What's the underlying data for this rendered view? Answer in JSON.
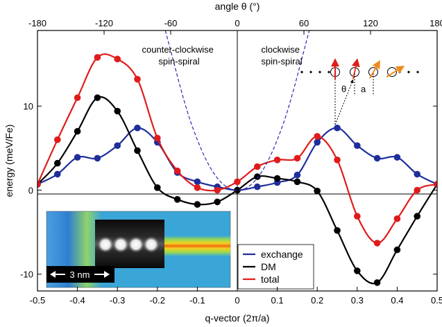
{
  "chart_data": {
    "type": "line",
    "xlabel": "q-vector (2π/a)",
    "ylabel": "energy (meV/Fe)",
    "x2label": "angle θ (°)",
    "xlim": [
      -0.5,
      0.5
    ],
    "ylim": [
      -12,
      19
    ],
    "x_ticks": [
      -0.5,
      -0.4,
      -0.3,
      -0.2,
      -0.1,
      0,
      0.1,
      0.2,
      0.3,
      0.4,
      0.5
    ],
    "x_tick_labels": [
      "-0.5",
      "-0.4",
      "-0.3",
      "-0.2",
      "-0.1",
      "0",
      "0.1",
      "0.2",
      "0.3",
      "0.4",
      "0.5"
    ],
    "y_ticks": [
      -10,
      0,
      10
    ],
    "y_tick_labels": [
      "-10",
      "0",
      "10"
    ],
    "x2_ticks": [
      -0.5,
      -0.3333,
      -0.1667,
      0,
      0.1667,
      0.3333,
      0.5
    ],
    "x2_tick_labels": [
      "-180",
      "-120",
      "-60",
      "0",
      "60",
      "120",
      "180"
    ],
    "annotations": [
      {
        "lines": [
          "counter-clockwise",
          "spin-spiral"
        ],
        "x": -0.245,
        "y": 17
      },
      {
        "lines": [
          "clockwise",
          "spin-spiral"
        ],
        "x": 0.125,
        "y": 17
      }
    ],
    "diagram_labels": {
      "theta": "θ",
      "a": "a"
    },
    "scale_bar": "3 nm",
    "legend_position": "bottom-right",
    "series": [
      {
        "name": "exchange",
        "color": "#1e2e9a",
        "x": [
          -0.5,
          -0.45,
          -0.4,
          -0.35,
          -0.3,
          -0.25,
          -0.2,
          -0.15,
          -0.1,
          -0.05,
          0,
          0.05,
          0.1,
          0.15,
          0.2,
          0.25,
          0.3,
          0.35,
          0.4,
          0.45,
          0.5
        ],
        "y": [
          0.7,
          1.9,
          3.9,
          3.8,
          5.3,
          7.4,
          5.7,
          2.1,
          1.0,
          0.4,
          0,
          0.4,
          0.9,
          1.8,
          5.7,
          7.4,
          5.3,
          3.8,
          3.9,
          1.9,
          0.7
        ]
      },
      {
        "name": "DM",
        "color": "#000000",
        "x": [
          -0.5,
          -0.45,
          -0.4,
          -0.35,
          -0.3,
          -0.25,
          -0.2,
          -0.15,
          -0.1,
          -0.05,
          0,
          0.05,
          0.1,
          0.15,
          0.2,
          0.25,
          0.3,
          0.35,
          0.4,
          0.45,
          0.5
        ],
        "y": [
          0.7,
          3.2,
          7.0,
          11.0,
          9.4,
          4.7,
          0.3,
          -1.1,
          -1.7,
          -1.4,
          0,
          1.6,
          1.4,
          1.0,
          -0.1,
          -4.8,
          -9.6,
          -11.0,
          -7.1,
          -3.1,
          0.7
        ]
      },
      {
        "name": "total",
        "color": "#e01b1b",
        "x": [
          -0.5,
          -0.45,
          -0.4,
          -0.35,
          -0.3,
          -0.25,
          -0.2,
          -0.15,
          -0.1,
          -0.05,
          0,
          0.05,
          0.1,
          0.15,
          0.2,
          0.25,
          0.3,
          0.35,
          0.4,
          0.45,
          0.5
        ],
        "y": [
          0.7,
          6.0,
          11.0,
          15.8,
          15.6,
          13.2,
          6.2,
          2.3,
          0.3,
          0.0,
          1.0,
          2.8,
          3.6,
          3.8,
          6.4,
          3.6,
          -3.1,
          -6.3,
          -3.4,
          0.0,
          0.7
        ]
      },
      {
        "name": "",
        "color": "#2a2ab0",
        "style": "dashed",
        "x": [
          -0.18,
          -0.16,
          -0.14,
          -0.12,
          -0.1,
          -0.08,
          -0.06,
          -0.04,
          -0.02,
          0,
          0.02,
          0.04,
          0.06,
          0.08,
          0.1,
          0.12,
          0.14,
          0.16,
          0.18
        ],
        "y": [
          19.0,
          15.4,
          11.8,
          8.6,
          6.0,
          3.8,
          2.1,
          0.9,
          0.2,
          0,
          0.2,
          0.9,
          2.1,
          3.8,
          6.0,
          8.6,
          11.8,
          15.4,
          19.0
        ]
      }
    ]
  },
  "colors": {
    "diagram_arrow_red": "#e01b1b",
    "diagram_arrow_orange": "#f08a1c",
    "inset_background": "#3b9bd6",
    "inset_stripe": "#f0c020"
  }
}
